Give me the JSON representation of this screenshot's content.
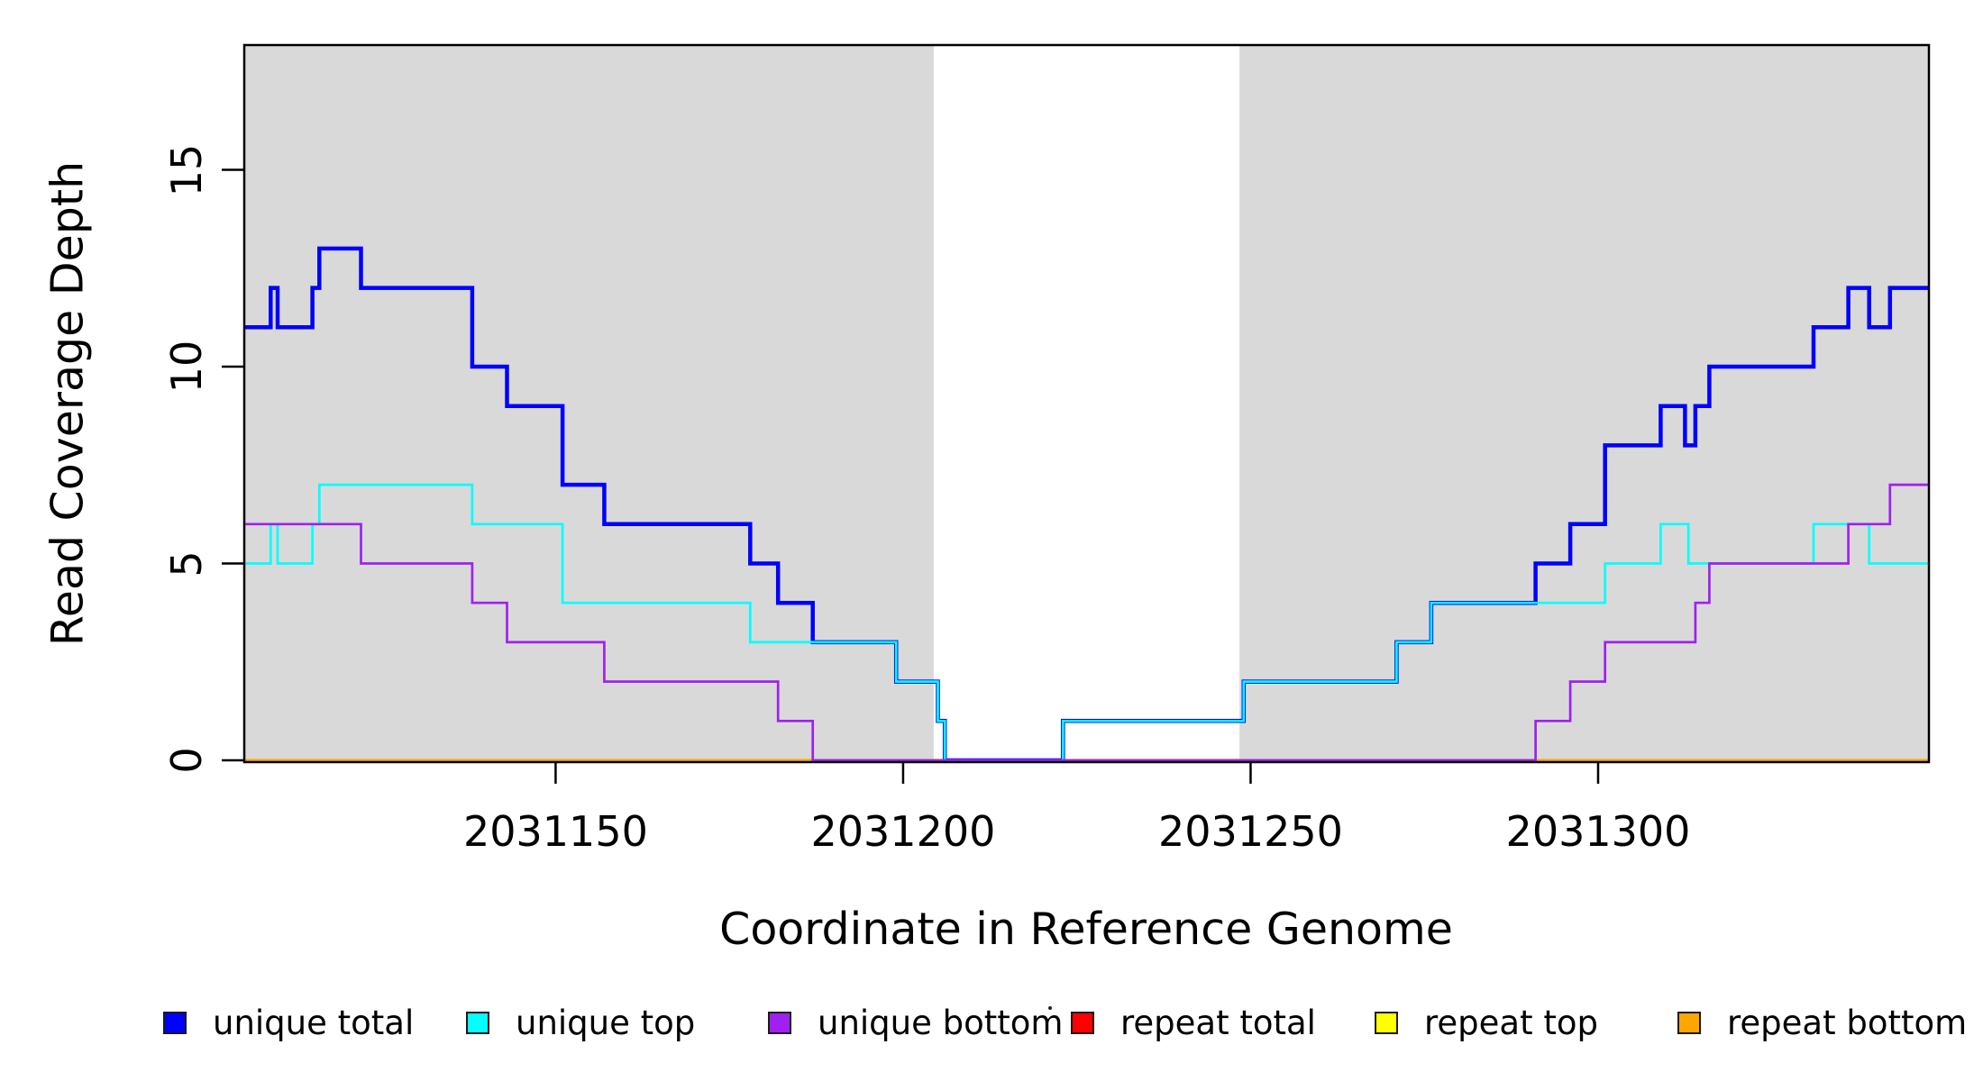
{
  "chart_data": {
    "type": "step-line",
    "xlabel": "Coordinate in Reference Genome",
    "ylabel": "Read Coverage Depth",
    "xlim": [
      2031105.2,
      2031347.6
    ],
    "ylim": [
      0,
      18.17
    ],
    "x_ticks": [
      2031150,
      2031200,
      2031250,
      2031300
    ],
    "x_tick_labels": [
      "2031150",
      "2031200",
      "2031250",
      "2031300"
    ],
    "y_ticks": [
      0,
      5,
      10,
      15
    ],
    "y_tick_labels": [
      "0",
      "5",
      "10",
      "15"
    ],
    "grid": false,
    "legend_position": "bottom-horizontal",
    "plot_background": "#ffffff",
    "shaded_regions": [
      {
        "x0": 2031105.2,
        "x1": 2031204.4,
        "color": "#d9d9d9"
      },
      {
        "x0": 2031248.4,
        "x1": 2031347.6,
        "color": "#d9d9d9"
      }
    ],
    "draw_order": [
      3,
      4,
      5,
      0,
      1,
      2
    ],
    "series": [
      {
        "name": "unique total",
        "color": "#0000ff",
        "steps": [
          [
            2031105.2,
            11
          ],
          [
            2031109,
            12
          ],
          [
            2031110,
            11
          ],
          [
            2031115,
            12
          ],
          [
            2031116,
            13
          ],
          [
            2031122,
            12
          ],
          [
            2031138,
            10
          ],
          [
            2031143,
            9
          ],
          [
            2031151,
            7
          ],
          [
            2031157,
            6
          ],
          [
            2031178,
            5
          ],
          [
            2031182,
            4
          ],
          [
            2031187,
            3
          ],
          [
            2031199,
            2
          ],
          [
            2031205,
            1
          ],
          [
            2031206,
            0
          ],
          [
            2031223,
            1
          ],
          [
            2031249,
            2
          ],
          [
            2031271,
            3
          ],
          [
            2031276,
            4
          ],
          [
            2031291,
            5
          ],
          [
            2031296,
            6
          ],
          [
            2031301,
            8
          ],
          [
            2031309,
            9
          ],
          [
            2031312.5,
            8
          ],
          [
            2031314,
            9
          ],
          [
            2031316,
            10
          ],
          [
            2031331,
            11
          ],
          [
            2031336,
            12
          ],
          [
            2031339,
            11
          ],
          [
            2031342,
            12
          ]
        ]
      },
      {
        "name": "unique top",
        "color": "#00ffff",
        "steps": [
          [
            2031105.2,
            5
          ],
          [
            2031109,
            6
          ],
          [
            2031110,
            5
          ],
          [
            2031115,
            6
          ],
          [
            2031116,
            7
          ],
          [
            2031138,
            6
          ],
          [
            2031151,
            4
          ],
          [
            2031178,
            3
          ],
          [
            2031199,
            2
          ],
          [
            2031205,
            1
          ],
          [
            2031206,
            0
          ],
          [
            2031223,
            1
          ],
          [
            2031249,
            2
          ],
          [
            2031271,
            3
          ],
          [
            2031276,
            4
          ],
          [
            2031301,
            5
          ],
          [
            2031309,
            6
          ],
          [
            2031313,
            5
          ],
          [
            2031331,
            6
          ],
          [
            2031339,
            5
          ]
        ]
      },
      {
        "name": "unique bottom",
        "color": "#a020f0",
        "steps": [
          [
            2031105.2,
            6
          ],
          [
            2031122,
            5
          ],
          [
            2031138,
            4
          ],
          [
            2031143,
            3
          ],
          [
            2031157,
            2
          ],
          [
            2031182,
            1
          ],
          [
            2031187,
            0
          ],
          [
            2031291,
            1
          ],
          [
            2031296,
            2
          ],
          [
            2031301,
            3
          ],
          [
            2031314,
            4
          ],
          [
            2031316,
            5
          ],
          [
            2031336,
            6
          ],
          [
            2031342,
            7
          ]
        ]
      },
      {
        "name": "repeat total",
        "color": "#ff0000",
        "steps": [
          [
            2031105.2,
            0
          ]
        ]
      },
      {
        "name": "repeat top",
        "color": "#ffff00",
        "steps": [
          [
            2031105.2,
            0
          ]
        ]
      },
      {
        "name": "repeat bottom",
        "color": "#ffa500",
        "steps": [
          [
            2031105.2,
            0
          ]
        ]
      }
    ]
  },
  "legend": {
    "items": [
      {
        "label": "unique total",
        "color": "#0000ff"
      },
      {
        "label": "unique top",
        "color": "#00ffff"
      },
      {
        "label": "unique bottom",
        "color": "#a020f0"
      },
      {
        "label": "repeat total",
        "color": "#ff0000"
      },
      {
        "label": "repeat top",
        "color": "#ffff00"
      },
      {
        "label": "repeat bottom",
        "color": "#ffa500"
      }
    ]
  }
}
